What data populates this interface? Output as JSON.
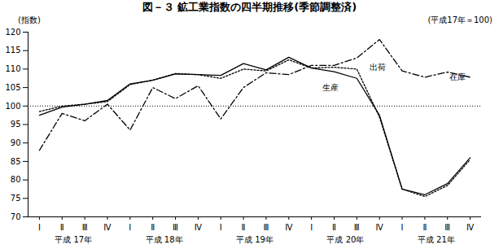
{
  "chart_data": {
    "type": "line",
    "title": "図－３ 鉱工業指数の四半期推移(季節調整済)",
    "subtitle": "(平成17年＝100)",
    "y_label": "(指数)",
    "categories": [
      "Ⅰ",
      "Ⅱ",
      "Ⅲ",
      "Ⅳ",
      "Ⅰ",
      "Ⅱ",
      "Ⅲ",
      "Ⅳ",
      "Ⅰ",
      "Ⅱ",
      "Ⅲ",
      "Ⅳ",
      "Ⅰ",
      "Ⅱ",
      "Ⅲ",
      "Ⅳ",
      "Ⅰ",
      "Ⅱ",
      "Ⅲ",
      "Ⅳ"
    ],
    "x_groups": [
      "平成 17年",
      "平成 18年",
      "平成 19年",
      "平成 20年",
      "平成 21年"
    ],
    "series": [
      {
        "name": "生産",
        "color": "#000000",
        "line_style": "solid",
        "values": [
          97.5,
          99.7,
          100.5,
          101.5,
          106,
          107,
          108.7,
          108.5,
          108.3,
          111.5,
          109.8,
          113.2,
          110.3,
          109.3,
          107.5,
          97.5,
          77.5,
          76,
          79,
          86
        ]
      },
      {
        "name": "出荷",
        "color": "#000000",
        "line_style": "dotted",
        "values": [
          98.5,
          100,
          100.5,
          101.2,
          105.8,
          107,
          108.8,
          108.5,
          107.5,
          110,
          109.5,
          112.5,
          110.3,
          110.5,
          110,
          97,
          77.5,
          75.5,
          78.5,
          85.5
        ]
      },
      {
        "name": "在庫",
        "color": "#000000",
        "line_style": "dashdot",
        "values": [
          88,
          98,
          96,
          100.5,
          93.5,
          105,
          102,
          105.5,
          96.5,
          105,
          109,
          108.5,
          111,
          111,
          113,
          118,
          109.5,
          107.8,
          109.2,
          107.8
        ]
      }
    ],
    "reference_line": 100,
    "ylim": [
      70,
      120
    ],
    "yticks": [
      70,
      75,
      80,
      85,
      90,
      95,
      100,
      105,
      110,
      115,
      120
    ],
    "grid": false
  }
}
